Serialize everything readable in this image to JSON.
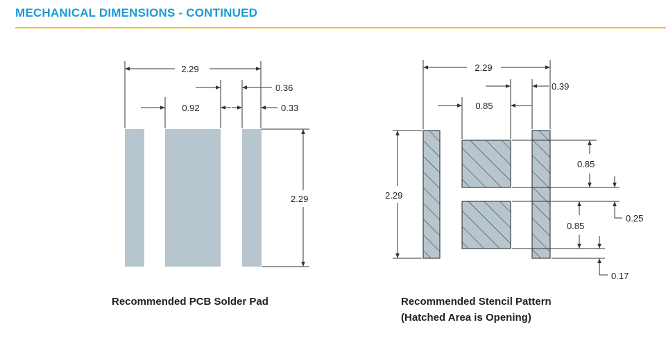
{
  "header": {
    "title": "MECHANICAL DIMENSIONS - CONTINUED",
    "accent_color": "#1a9ad6",
    "rule_color": "#f2c335"
  },
  "pcb": {
    "caption": "Recommended PCB Solder Pad",
    "dim_total_width": "2.29",
    "dim_center_pad_width": "0.92",
    "dim_gap": "0.36",
    "dim_side_pad_width": "0.33",
    "dim_height": "2.29",
    "pad_color": "#b7c5ce"
  },
  "stencil": {
    "caption_line1": "Recommended Stencil Pattern",
    "caption_line2": "(Hatched Area is Opening)",
    "dim_total_width": "2.29",
    "dim_center_opening_width": "0.85",
    "dim_side_opening_width": "0.39",
    "dim_height": "2.29",
    "dim_upper_opening_height": "0.85",
    "dim_opening_gap": "0.25",
    "dim_lower_opening_height": "0.85",
    "dim_bottom_offset": "0.17",
    "opening_color": "#b7c5ce"
  }
}
